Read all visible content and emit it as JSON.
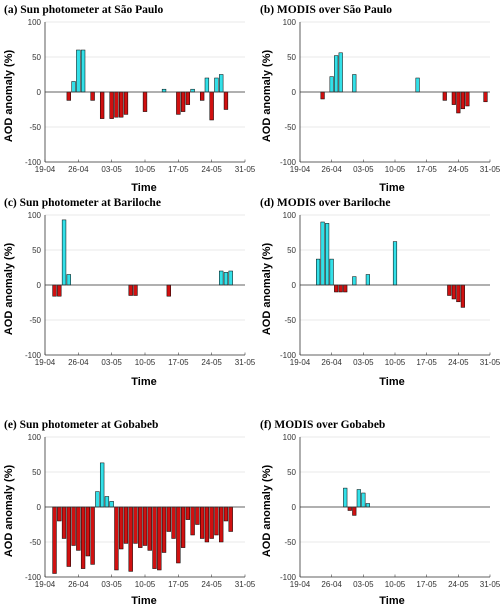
{
  "chart_data": [
    {
      "type": "bar",
      "title": "(a) Sun photometer at São Paulo",
      "xlabel": "Time",
      "ylabel": "AOD anomaly (%)",
      "ylim": [
        -100,
        100
      ],
      "yticks": [
        -100,
        -50,
        0,
        50,
        100
      ],
      "xlim": [
        0,
        42
      ],
      "xticks": [
        0,
        7,
        14,
        21,
        28,
        35,
        42
      ],
      "xtick_labels": [
        "19-04",
        "26-04",
        "03-05",
        "10-05",
        "17-05",
        "24-05",
        "31-05"
      ],
      "grid": "horizontal",
      "colors": {
        "positive": "#33e0e8",
        "negative": "#d01010"
      },
      "x": [
        5,
        6,
        7,
        8,
        10,
        12,
        14,
        15,
        16,
        17,
        21,
        25,
        28,
        29,
        30,
        31,
        33,
        34,
        35,
        36,
        37,
        38
      ],
      "values": [
        -12,
        15,
        60,
        60,
        -12,
        -38,
        -38,
        -36,
        -36,
        -32,
        -28,
        4,
        -32,
        -28,
        -18,
        4,
        -12,
        20,
        -40,
        20,
        25,
        -25
      ]
    },
    {
      "type": "bar",
      "title": "(b) MODIS over São Paulo",
      "xlabel": "Time",
      "ylabel": "AOD anomaly (%)",
      "ylim": [
        -100,
        100
      ],
      "yticks": [
        -100,
        -50,
        0,
        50,
        100
      ],
      "xlim": [
        0,
        42
      ],
      "xticks": [
        0,
        7,
        14,
        21,
        28,
        35,
        42
      ],
      "xtick_labels": [
        "19-04",
        "26-04",
        "03-05",
        "10-05",
        "17-05",
        "24-05",
        "31-05"
      ],
      "grid": "horizontal",
      "colors": {
        "positive": "#33e0e8",
        "negative": "#d01010"
      },
      "x": [
        5,
        7,
        8,
        9,
        12,
        26,
        32,
        34,
        35,
        36,
        37,
        41
      ],
      "values": [
        -10,
        22,
        52,
        56,
        25,
        20,
        -12,
        -18,
        -30,
        -24,
        -20,
        -14
      ]
    },
    {
      "type": "bar",
      "title": "(c) Sun photometer at Bariloche",
      "xlabel": "Time",
      "ylabel": "AOD anomaly (%)",
      "ylim": [
        -100,
        100
      ],
      "yticks": [
        -100,
        -50,
        0,
        50,
        100
      ],
      "xlim": [
        0,
        42
      ],
      "xticks": [
        0,
        7,
        14,
        21,
        28,
        35,
        42
      ],
      "xtick_labels": [
        "19-04",
        "26-04",
        "03-05",
        "10-05",
        "17-05",
        "24-05",
        "31-05"
      ],
      "grid": "horizontal",
      "colors": {
        "positive": "#33e0e8",
        "negative": "#d01010"
      },
      "x": [
        2,
        3,
        4,
        5,
        18,
        19,
        26,
        37,
        38,
        39
      ],
      "values": [
        -16,
        -16,
        93,
        15,
        -15,
        -15,
        -16,
        20,
        18,
        20
      ]
    },
    {
      "type": "bar",
      "title": "(d) MODIS over Bariloche",
      "xlabel": "Time",
      "ylabel": "AOD anomaly (%)",
      "ylim": [
        -100,
        100
      ],
      "yticks": [
        -100,
        -50,
        0,
        50,
        100
      ],
      "xlim": [
        0,
        42
      ],
      "xticks": [
        0,
        7,
        14,
        21,
        28,
        35,
        42
      ],
      "xtick_labels": [
        "19-04",
        "26-04",
        "03-05",
        "10-05",
        "17-05",
        "24-05",
        "31-05"
      ],
      "grid": "horizontal",
      "colors": {
        "positive": "#33e0e8",
        "negative": "#d01010"
      },
      "x": [
        4,
        5,
        6,
        7,
        8,
        9,
        10,
        12,
        15,
        21,
        33,
        34,
        35,
        36
      ],
      "values": [
        37,
        90,
        88,
        37,
        -10,
        -10,
        -10,
        12,
        15,
        62,
        -15,
        -20,
        -24,
        -32
      ]
    },
    {
      "type": "bar",
      "title": "(e) Sun photometer at Gobabeb",
      "xlabel": "Time",
      "ylabel": "AOD anomaly (%)",
      "ylim": [
        -100,
        100
      ],
      "yticks": [
        -100,
        -50,
        0,
        50,
        100
      ],
      "xlim": [
        0,
        42
      ],
      "xticks": [
        0,
        7,
        14,
        21,
        28,
        35,
        42
      ],
      "xtick_labels": [
        "19-04",
        "26-04",
        "03-05",
        "10-05",
        "17-05",
        "24-05",
        "31-05"
      ],
      "grid": "horizontal",
      "colors": {
        "positive": "#33e0e8",
        "negative": "#d01010"
      },
      "x": [
        2,
        3,
        4,
        5,
        6,
        7,
        8,
        9,
        10,
        11,
        12,
        13,
        14,
        15,
        16,
        17,
        18,
        19,
        20,
        21,
        22,
        23,
        24,
        25,
        26,
        27,
        28,
        29,
        30,
        31,
        32,
        33,
        34,
        35,
        36,
        37,
        38,
        39
      ],
      "values": [
        -95,
        -20,
        -45,
        -85,
        -55,
        -62,
        -88,
        -70,
        -82,
        22,
        63,
        15,
        8,
        -90,
        -60,
        -52,
        -92,
        -52,
        -58,
        -55,
        -62,
        -88,
        -90,
        -65,
        -35,
        -45,
        -80,
        -58,
        -18,
        -40,
        -25,
        -45,
        -50,
        -45,
        -40,
        -50,
        -20,
        -35
      ]
    },
    {
      "type": "bar",
      "title": "(f) MODIS over Gobabeb",
      "xlabel": "Time",
      "ylabel": "AOD anomaly (%)",
      "ylim": [
        -100,
        100
      ],
      "yticks": [
        -100,
        -50,
        0,
        50,
        100
      ],
      "xlim": [
        0,
        42
      ],
      "xticks": [
        0,
        7,
        14,
        21,
        28,
        35,
        42
      ],
      "xtick_labels": [
        "19-04",
        "26-04",
        "03-05",
        "10-05",
        "17-05",
        "24-05",
        "31-05"
      ],
      "grid": "horizontal",
      "colors": {
        "positive": "#33e0e8",
        "negative": "#d01010"
      },
      "x": [
        10,
        11,
        12,
        13,
        14,
        15
      ],
      "values": [
        27,
        -5,
        -12,
        25,
        20,
        5
      ]
    }
  ]
}
